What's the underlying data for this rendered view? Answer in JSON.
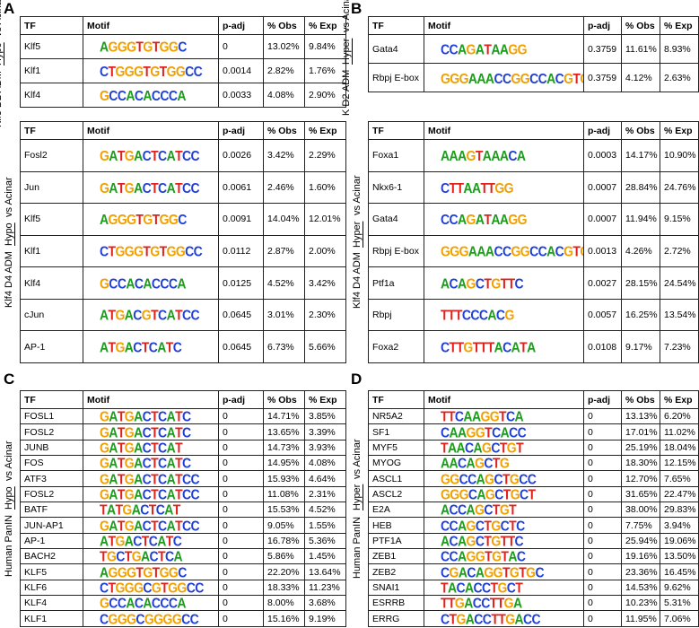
{
  "panels": [
    {
      "label": "A",
      "tables": [
        {
          "side": {
            "lines": [
              {
                "pre": "Klf5 D2 ADM",
                "u": "Hypo"
              },
              {
                "pre": "vs Acinar"
              }
            ]
          },
          "headers": [
            "TF",
            "Motif",
            "p-adj",
            "% Obs",
            "% Exp"
          ],
          "rows": [
            [
              "Klf5",
              "AGGGTGTGGC",
              "0",
              "13.02%",
              "9.84%"
            ],
            [
              "Klf1",
              "CTGGGTGTGGCC",
              "0.0014",
              "2.82%",
              "1.76%"
            ],
            [
              "Klf4",
              "GCCACACCCA",
              "0.0033",
              "4.08%",
              "2.90%"
            ]
          ]
        },
        {
          "side": {
            "lines": [
              {
                "pre": "Klf4 D4 ADM",
                "u": "Hypo",
                "post": "vs Acinar"
              }
            ]
          },
          "headers": [
            "TF",
            "Motif",
            "p-adj",
            "% Obs",
            "% Exp"
          ],
          "rows": [
            [
              "Fosl2",
              "GATGACTCATCC",
              "0.0026",
              "3.42%",
              "2.29%"
            ],
            [
              "Jun",
              "GATGACTCATCC",
              "0.0061",
              "2.46%",
              "1.60%"
            ],
            [
              "Klf5",
              "AGGGTGTGGC",
              "0.0091",
              "14.04%",
              "12.01%"
            ],
            [
              "Klf1",
              "CTGGGTGTGGCC",
              "0.0112",
              "2.87%",
              "2.00%"
            ],
            [
              "Klf4",
              "GCCACACCCA",
              "0.0125",
              "4.52%",
              "3.42%"
            ],
            [
              "cJun",
              "ATGACGTCATCC",
              "0.0645",
              "3.01%",
              "2.30%"
            ],
            [
              "AP-1",
              "ATGACTCATC",
              "0.0645",
              "6.73%",
              "5.66%"
            ]
          ]
        }
      ]
    },
    {
      "label": "B",
      "tables": [
        {
          "side": {
            "lines": [
              {
                "pre": "K D2 ADM",
                "u": "Hyper"
              },
              {
                "pre": "vs Acinar"
              }
            ]
          },
          "headers": [
            "TF",
            "Motif",
            "p-adj",
            "% Obs",
            "% Exp"
          ],
          "rows": [
            [
              "Gata4",
              "CCAGATAAGG",
              "0.3759",
              "11.61%",
              "8.93%"
            ],
            [
              "Rbpj E-box",
              "GGGAAACCGGCCACGTG",
              "0.3759",
              "4.12%",
              "2.63%"
            ]
          ]
        },
        {
          "side": {
            "lines": [
              {
                "pre": "Klf4 D4 ADM",
                "u": "Hyper",
                "post": "vs Acinar"
              }
            ]
          },
          "headers": [
            "TF",
            "Motif",
            "p-adj",
            "% Obs",
            "% Exp"
          ],
          "rows": [
            [
              "Foxa1",
              "AAAGTAAACA",
              "0.0003",
              "14.17%",
              "10.90%"
            ],
            [
              "Nkx6-1",
              "CTTAATTGG",
              "0.0007",
              "28.84%",
              "24.76%"
            ],
            [
              "Gata4",
              "CCAGATAAGG",
              "0.0007",
              "11.94%",
              "9.15%"
            ],
            [
              "Rbpj E-box",
              "GGGAAACCGGCCACGTG",
              "0.0013",
              "4.26%",
              "2.72%"
            ],
            [
              "Ptf1a",
              "ACAGCTGTTC",
              "0.0027",
              "28.15%",
              "24.54%"
            ],
            [
              "Rbpj",
              "TTTCCCACG",
              "0.0057",
              "16.25%",
              "13.54%"
            ],
            [
              "Foxa2",
              "CTTGTTTACATA",
              "0.0108",
              "9.17%",
              "7.23%"
            ]
          ]
        }
      ]
    },
    {
      "label": "C",
      "tables": [
        {
          "side": {
            "lines": [
              {
                "pre": "Human PanIN",
                "u": "Hypo",
                "post": "vs Acinar"
              }
            ]
          },
          "headers": [
            "TF",
            "Motif",
            "p-adj",
            "% Obs",
            "% Exp"
          ],
          "rows": [
            [
              "FOSL1",
              "GATGACTCATC",
              "0",
              "14.71%",
              "3.85%"
            ],
            [
              "FOSL2",
              "GATGACTCATC",
              "0",
              "13.65%",
              "3.39%"
            ],
            [
              "JUNB",
              "GATGACTCAT",
              "0",
              "14.73%",
              "3.93%"
            ],
            [
              "FOS",
              "GATGACTCATC",
              "0",
              "14.95%",
              "4.08%"
            ],
            [
              "ATF3",
              "GATGACTCATCC",
              "0",
              "15.93%",
              "4.64%"
            ],
            [
              "FOSL2",
              "GATGACTCATCC",
              "0",
              "11.08%",
              "2.31%"
            ],
            [
              "BATF",
              "TATGACTCAT",
              "0",
              "15.53%",
              "4.52%"
            ],
            [
              "JUN-AP1",
              "GATGACTCATCC",
              "0",
              "9.05%",
              "1.55%"
            ],
            [
              "AP-1",
              "ATGACTCATC",
              "0",
              "16.78%",
              "5.36%"
            ],
            [
              "BACH2",
              "TGCTGACTCA",
              "0",
              "5.86%",
              "1.45%"
            ],
            [
              "KLF5",
              "AGGGTGTGGC",
              "0",
              "22.20%",
              "13.64%"
            ],
            [
              "KLF6",
              "CTGGGCGTGGCC",
              "0",
              "18.33%",
              "11.23%"
            ],
            [
              "KLF4",
              "GCCACACCCA",
              "0",
              "8.00%",
              "3.68%"
            ],
            [
              "KLF1",
              "CGGGCGGGGCC",
              "0",
              "15.16%",
              "9.19%"
            ]
          ]
        }
      ]
    },
    {
      "label": "D",
      "tables": [
        {
          "side": {
            "lines": [
              {
                "pre": "Human PanIN",
                "u": "Hyper",
                "post": "vs Acinar"
              }
            ]
          },
          "headers": [
            "TF",
            "Motif",
            "p-adj",
            "% Obs",
            "% Exp"
          ],
          "rows": [
            [
              "NR5A2",
              "TTCAAGGTCA",
              "0",
              "13.13%",
              "6.20%"
            ],
            [
              "SF1",
              "CAAGGTCACC",
              "0",
              "17.01%",
              "11.02%"
            ],
            [
              "MYF5",
              "TAACAGCTGT",
              "0",
              "25.19%",
              "18.04%"
            ],
            [
              "MYOG",
              "AACAGCTG",
              "0",
              "18.30%",
              "12.15%"
            ],
            [
              "ASCL1",
              "GGCCAGCTGCC",
              "0",
              "12.70%",
              "7.65%"
            ],
            [
              "ASCL2",
              "GGGCAGCTGCT",
              "0",
              "31.65%",
              "22.47%"
            ],
            [
              "E2A",
              "ACCAGCTGT",
              "0",
              "38.00%",
              "29.83%"
            ],
            [
              "HEB",
              "CCAGCTGCTC",
              "0",
              "7.75%",
              "3.94%"
            ],
            [
              "PTF1A",
              "ACAGCTGTTC",
              "0",
              "25.94%",
              "19.06%"
            ],
            [
              "ZEB1",
              "CCAGGTGTAC",
              "0",
              "19.16%",
              "13.50%"
            ],
            [
              "ZEB2",
              "CGACAGGTGTGC",
              "0",
              "23.36%",
              "16.45%"
            ],
            [
              "SNAI1",
              "TACACCTGCT",
              "0",
              "14.53%",
              "9.62%"
            ],
            [
              "ESRRB",
              "TTGACCTTGA",
              "0",
              "10.23%",
              "5.31%"
            ],
            [
              "ERRG",
              "CTGACCTTGACC",
              "0",
              "11.95%",
              "7.06%"
            ]
          ]
        }
      ]
    }
  ]
}
